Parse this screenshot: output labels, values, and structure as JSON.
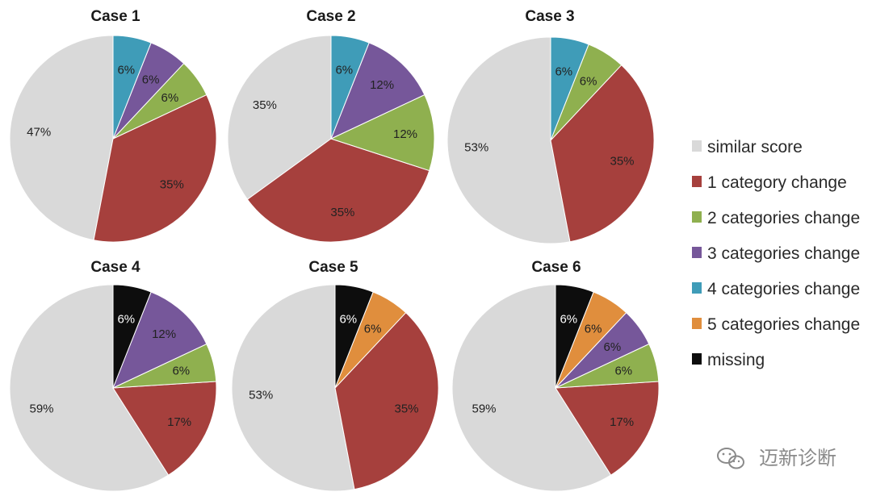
{
  "colors": {
    "similar_score": "#d9d9d9",
    "cat1": "#a6403d",
    "cat2": "#8fb04f",
    "cat3": "#76579a",
    "cat4": "#3f9cb8",
    "cat5": "#e08e3d",
    "missing": "#0d0d0d"
  },
  "legend": [
    {
      "key": "similar_score",
      "label": "similar score"
    },
    {
      "key": "cat1",
      "label": "1 category change"
    },
    {
      "key": "cat2",
      "label": "2 categories change"
    },
    {
      "key": "cat3",
      "label": "3 categories change"
    },
    {
      "key": "cat4",
      "label": "4 categories change"
    },
    {
      "key": "cat5",
      "label": "5 categories change"
    },
    {
      "key": "missing",
      "label": "missing"
    }
  ],
  "chart_data": [
    {
      "type": "pie",
      "title": "Case 1",
      "slices": [
        {
          "key": "similar_score",
          "value": 47,
          "label": "47%"
        },
        {
          "key": "cat1",
          "value": 35,
          "label": "35%"
        },
        {
          "key": "cat2",
          "value": 6,
          "label": "6%"
        },
        {
          "key": "cat3",
          "value": 6,
          "label": "6%"
        },
        {
          "key": "cat4",
          "value": 6,
          "label": "6%"
        }
      ]
    },
    {
      "type": "pie",
      "title": "Case 2",
      "slices": [
        {
          "key": "similar_score",
          "value": 35,
          "label": "35%"
        },
        {
          "key": "cat1",
          "value": 35,
          "label": "35%"
        },
        {
          "key": "cat2",
          "value": 12,
          "label": "12%"
        },
        {
          "key": "cat3",
          "value": 12,
          "label": "12%"
        },
        {
          "key": "cat4",
          "value": 6,
          "label": "6%"
        }
      ]
    },
    {
      "type": "pie",
      "title": "Case 3",
      "slices": [
        {
          "key": "similar_score",
          "value": 53,
          "label": "53%"
        },
        {
          "key": "cat1",
          "value": 35,
          "label": "35%"
        },
        {
          "key": "cat2",
          "value": 6,
          "label": "6%"
        },
        {
          "key": "cat4",
          "value": 6,
          "label": "6%"
        }
      ]
    },
    {
      "type": "pie",
      "title": "Case 4",
      "slices": [
        {
          "key": "similar_score",
          "value": 59,
          "label": "59%"
        },
        {
          "key": "cat1",
          "value": 17,
          "label": "17%"
        },
        {
          "key": "cat2",
          "value": 6,
          "label": "6%"
        },
        {
          "key": "cat3",
          "value": 12,
          "label": "12%"
        },
        {
          "key": "missing",
          "value": 6,
          "label": "6%"
        }
      ]
    },
    {
      "type": "pie",
      "title": "Case 5",
      "slices": [
        {
          "key": "similar_score",
          "value": 53,
          "label": "53%"
        },
        {
          "key": "cat1",
          "value": 35,
          "label": "35%"
        },
        {
          "key": "cat5",
          "value": 6,
          "label": "6%"
        },
        {
          "key": "missing",
          "value": 6,
          "label": "6%"
        }
      ]
    },
    {
      "type": "pie",
      "title": "Case 6",
      "slices": [
        {
          "key": "similar_score",
          "value": 59,
          "label": "59%"
        },
        {
          "key": "cat1",
          "value": 17,
          "label": "17%"
        },
        {
          "key": "cat2",
          "value": 6,
          "label": "6%"
        },
        {
          "key": "cat3",
          "value": 6,
          "label": "6%"
        },
        {
          "key": "cat5",
          "value": 6,
          "label": "6%"
        },
        {
          "key": "missing",
          "value": 6,
          "label": "6%"
        }
      ]
    }
  ],
  "watermark": {
    "icon": "wechat-icon",
    "text": "迈新诊断"
  }
}
